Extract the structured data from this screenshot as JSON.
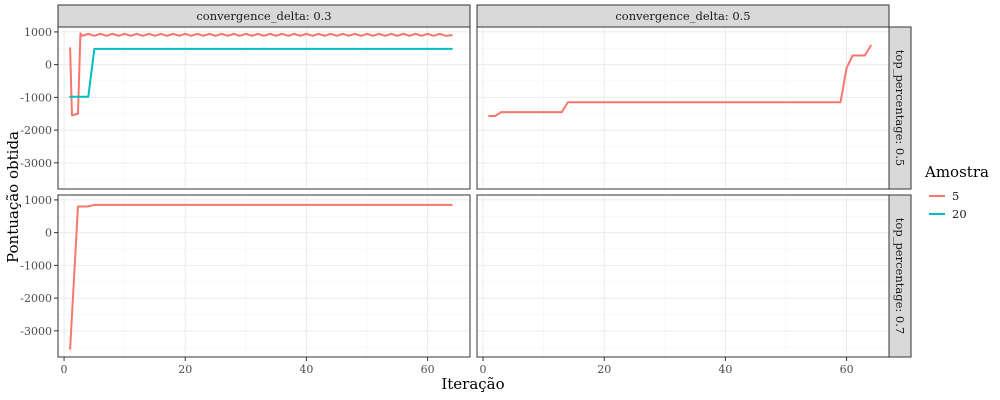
{
  "chart_data": {
    "type": "line",
    "title": "",
    "xlabel": "Iteração",
    "ylabel": "Pontuação obtida",
    "xlim": [
      -1,
      67
    ],
    "ylim": [
      -3800,
      1150
    ],
    "x_ticks": [
      0,
      20,
      40,
      60
    ],
    "y_ticks": [
      1000,
      0,
      -1000,
      -2000,
      -3000
    ],
    "grid": true,
    "legend": {
      "title": "Amostra",
      "placement": "right",
      "entries": [
        {
          "label": "5",
          "color": "#F8766D"
        },
        {
          "label": "20",
          "color": "#00BFC4"
        }
      ]
    },
    "facets": {
      "columns": [
        "convergence_delta: 0.3",
        "convergence_delta: 0.5"
      ],
      "rows": [
        "top_percentage: 0.5",
        "top_percentage: 0.7"
      ]
    },
    "panels": [
      {
        "col": 0,
        "row": 0,
        "series": [
          {
            "name": "5",
            "color": "#F8766D",
            "points": [
              [
                1,
                500
              ],
              [
                1.3,
                -1550
              ],
              [
                2.3,
                -1500
              ],
              [
                2.7,
                950
              ],
              [
                3,
                880
              ],
              [
                4,
                940
              ],
              [
                5,
                880
              ],
              [
                6,
                940
              ],
              [
                7,
                880
              ],
              [
                8,
                940
              ],
              [
                9,
                880
              ],
              [
                10,
                940
              ],
              [
                11,
                880
              ],
              [
                12,
                940
              ],
              [
                13,
                880
              ],
              [
                14,
                940
              ],
              [
                15,
                880
              ],
              [
                16,
                940
              ],
              [
                17,
                880
              ],
              [
                18,
                940
              ],
              [
                19,
                880
              ],
              [
                20,
                940
              ],
              [
                21,
                880
              ],
              [
                22,
                940
              ],
              [
                23,
                880
              ],
              [
                24,
                940
              ],
              [
                25,
                880
              ],
              [
                26,
                940
              ],
              [
                27,
                880
              ],
              [
                28,
                940
              ],
              [
                29,
                880
              ],
              [
                30,
                940
              ],
              [
                31,
                880
              ],
              [
                32,
                940
              ],
              [
                33,
                880
              ],
              [
                34,
                940
              ],
              [
                35,
                880
              ],
              [
                36,
                940
              ],
              [
                37,
                880
              ],
              [
                38,
                940
              ],
              [
                39,
                880
              ],
              [
                40,
                940
              ],
              [
                41,
                880
              ],
              [
                42,
                940
              ],
              [
                43,
                880
              ],
              [
                44,
                940
              ],
              [
                45,
                880
              ],
              [
                46,
                940
              ],
              [
                47,
                880
              ],
              [
                48,
                940
              ],
              [
                49,
                880
              ],
              [
                50,
                940
              ],
              [
                51,
                880
              ],
              [
                52,
                940
              ],
              [
                53,
                880
              ],
              [
                54,
                940
              ],
              [
                55,
                880
              ],
              [
                56,
                940
              ],
              [
                57,
                880
              ],
              [
                58,
                940
              ],
              [
                59,
                880
              ],
              [
                60,
                940
              ],
              [
                61,
                880
              ],
              [
                62,
                940
              ],
              [
                63,
                880
              ],
              [
                64,
                900
              ]
            ]
          },
          {
            "name": "20",
            "color": "#00BFC4",
            "points": [
              [
                1,
                -980
              ],
              [
                4,
                -980
              ],
              [
                5,
                480
              ],
              [
                64,
                480
              ]
            ]
          }
        ]
      },
      {
        "col": 1,
        "row": 0,
        "series": [
          {
            "name": "5",
            "color": "#F8766D",
            "points": [
              [
                1,
                -1570
              ],
              [
                2,
                -1570
              ],
              [
                3,
                -1450
              ],
              [
                13,
                -1450
              ],
              [
                14,
                -1150
              ],
              [
                59,
                -1150
              ],
              [
                60,
                -100
              ],
              [
                61,
                280
              ],
              [
                63,
                280
              ],
              [
                64,
                580
              ]
            ]
          }
        ]
      },
      {
        "col": 0,
        "row": 1,
        "series": [
          {
            "name": "5",
            "color": "#F8766D",
            "points": [
              [
                1,
                -3550
              ],
              [
                2.3,
                800
              ],
              [
                4,
                800
              ],
              [
                5,
                850
              ],
              [
                64,
                850
              ]
            ]
          }
        ]
      },
      {
        "col": 1,
        "row": 1,
        "series": []
      }
    ]
  }
}
